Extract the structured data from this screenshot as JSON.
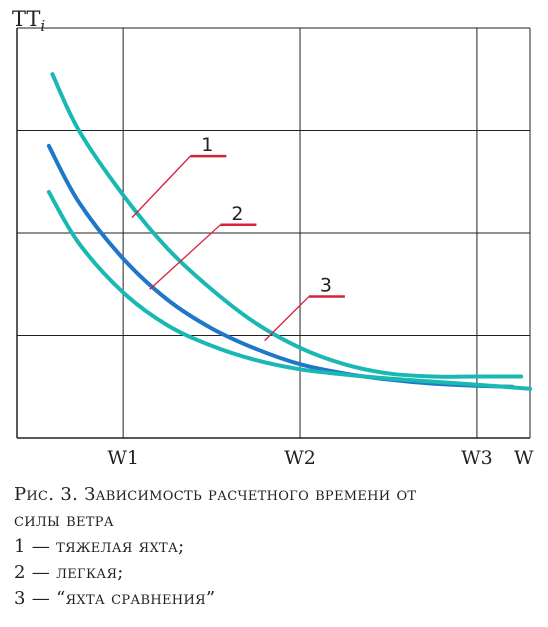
{
  "chart_data": {
    "type": "line",
    "ylabel": "TT",
    "ylabel_subscript": "i",
    "xlabel": "W",
    "x_ticks": [
      "W1",
      "W2",
      "W3"
    ],
    "xlim": [
      0.4,
      3.3
    ],
    "ylim": [
      0,
      4
    ],
    "grid": true,
    "series": [
      {
        "id": "1",
        "color": "#1ab8b3",
        "x": [
          0.6,
          0.75,
          1.0,
          1.25,
          1.5,
          1.75,
          2.0,
          2.25,
          2.5,
          2.75,
          3.0,
          3.25
        ],
        "y": [
          3.55,
          3.0,
          2.37,
          1.85,
          1.45,
          1.12,
          0.88,
          0.72,
          0.63,
          0.6,
          0.6,
          0.6
        ]
      },
      {
        "id": "2",
        "color": "#1f77c9",
        "x": [
          0.58,
          0.75,
          1.0,
          1.25,
          1.5,
          1.75,
          2.0,
          2.25,
          2.5,
          2.75,
          3.0,
          3.2
        ],
        "y": [
          2.85,
          2.3,
          1.75,
          1.35,
          1.07,
          0.87,
          0.72,
          0.63,
          0.57,
          0.53,
          0.51,
          0.5
        ]
      },
      {
        "id": "3",
        "color": "#1ab8b3",
        "x": [
          0.58,
          0.75,
          1.0,
          1.25,
          1.5,
          1.75,
          2.0,
          2.25,
          2.5,
          2.75,
          3.0,
          3.3
        ],
        "y": [
          2.4,
          1.9,
          1.42,
          1.1,
          0.9,
          0.76,
          0.67,
          0.62,
          0.58,
          0.55,
          0.52,
          0.48
        ]
      }
    ],
    "callouts": [
      {
        "label": "1",
        "series": "1",
        "anchor_x": 1.05,
        "anchor_y": 2.15,
        "text_x": 1.38,
        "text_y": 2.75
      },
      {
        "label": "2",
        "series": "2",
        "anchor_x": 1.15,
        "anchor_y": 1.45,
        "text_x": 1.55,
        "text_y": 2.08
      },
      {
        "label": "3",
        "series": "3",
        "anchor_x": 1.8,
        "anchor_y": 0.95,
        "text_x": 2.05,
        "text_y": 1.38
      }
    ]
  },
  "caption": {
    "title_line1": "Рис. 3. Зависимость расчетного времени от",
    "title_line2": "силы ветра",
    "items": [
      "1 — тяжелая яхта;",
      "2 — легкая;",
      "3 — “яхта сравнения”"
    ]
  }
}
